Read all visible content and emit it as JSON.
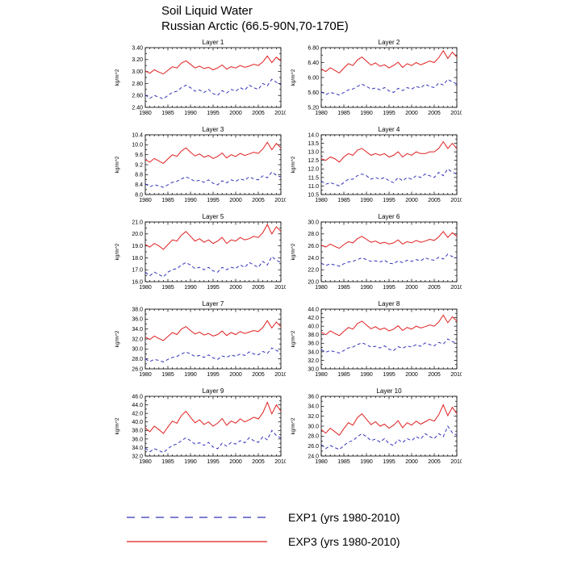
{
  "title": {
    "line1": "Soil Liquid Water",
    "line2": "Russian Arctic (66.5-90N,70-170E)"
  },
  "legend": [
    {
      "name": "EXP1",
      "label": "EXP1 (yrs 1980-2010)",
      "color": "#3333bb",
      "style": "dashed"
    },
    {
      "name": "EXP3",
      "label": "EXP3 (yrs 1980-2010)",
      "color": "#e02020",
      "style": "solid"
    }
  ],
  "chart_data": {
    "type": "line",
    "ylabel": "kg/m^2",
    "x": [
      1980,
      1981,
      1982,
      1983,
      1984,
      1985,
      1986,
      1987,
      1988,
      1989,
      1990,
      1991,
      1992,
      1993,
      1994,
      1995,
      1996,
      1997,
      1998,
      1999,
      2000,
      2001,
      2002,
      2003,
      2004,
      2005,
      2006,
      2007,
      2008,
      2009,
      2010
    ],
    "xticks": [
      1980,
      1985,
      1990,
      1995,
      2000,
      2005,
      2010
    ],
    "panels": [
      {
        "title": "Layer 1",
        "ylim": [
          2.4,
          3.4
        ],
        "yticks": [
          "2.40",
          "2.60",
          "2.80",
          "3.00",
          "3.20",
          "3.40"
        ],
        "EXP3": [
          3.01,
          2.97,
          3.03,
          2.99,
          2.96,
          3.02,
          3.08,
          3.06,
          3.14,
          3.18,
          3.12,
          3.06,
          3.09,
          3.05,
          3.07,
          3.03,
          3.06,
          3.11,
          3.04,
          3.08,
          3.06,
          3.1,
          3.07,
          3.09,
          3.12,
          3.1,
          3.16,
          3.26,
          3.15,
          3.24,
          3.18
        ],
        "EXP1": [
          2.61,
          2.55,
          2.6,
          2.57,
          2.54,
          2.6,
          2.65,
          2.67,
          2.73,
          2.77,
          2.73,
          2.67,
          2.69,
          2.65,
          2.7,
          2.63,
          2.6,
          2.68,
          2.64,
          2.7,
          2.67,
          2.73,
          2.69,
          2.77,
          2.73,
          2.7,
          2.8,
          2.76,
          2.87,
          2.82,
          2.78
        ]
      },
      {
        "title": "Layer 2",
        "ylim": [
          5.2,
          6.8
        ],
        "yticks": [
          "5.20",
          "5.60",
          "6.00",
          "6.40",
          "6.80"
        ],
        "EXP3": [
          6.23,
          6.16,
          6.26,
          6.19,
          6.12,
          6.25,
          6.37,
          6.32,
          6.47,
          6.55,
          6.44,
          6.33,
          6.39,
          6.3,
          6.34,
          6.26,
          6.32,
          6.41,
          6.27,
          6.37,
          6.32,
          6.4,
          6.34,
          6.39,
          6.44,
          6.4,
          6.53,
          6.72,
          6.51,
          6.68,
          6.55
        ],
        "EXP1": [
          5.62,
          5.54,
          5.6,
          5.57,
          5.53,
          5.6,
          5.67,
          5.69,
          5.76,
          5.82,
          5.76,
          5.69,
          5.72,
          5.67,
          5.73,
          5.64,
          5.6,
          5.71,
          5.65,
          5.73,
          5.69,
          5.76,
          5.72,
          5.82,
          5.76,
          5.73,
          5.85,
          5.8,
          5.95,
          5.88,
          5.83
        ]
      },
      {
        "title": "Layer 3",
        "ylim": [
          8.0,
          10.4
        ],
        "yticks": [
          "8.0",
          "8.4",
          "8.8",
          "9.2",
          "9.6",
          "10.0",
          "10.4"
        ],
        "EXP3": [
          9.4,
          9.3,
          9.45,
          9.35,
          9.25,
          9.43,
          9.6,
          9.53,
          9.75,
          9.87,
          9.7,
          9.55,
          9.63,
          9.5,
          9.57,
          9.45,
          9.53,
          9.67,
          9.47,
          9.6,
          9.53,
          9.65,
          9.57,
          9.63,
          9.7,
          9.65,
          9.83,
          10.1,
          9.8,
          10.05,
          9.87
        ],
        "EXP1": [
          8.43,
          8.31,
          8.39,
          8.35,
          8.29,
          8.39,
          8.49,
          8.53,
          8.63,
          8.71,
          8.63,
          8.53,
          8.57,
          8.49,
          8.59,
          8.45,
          8.39,
          8.55,
          8.47,
          8.59,
          8.53,
          8.63,
          8.57,
          8.71,
          8.63,
          8.59,
          8.75,
          8.67,
          8.9,
          8.78,
          8.7
        ]
      },
      {
        "title": "Layer 4",
        "ylim": [
          10.5,
          14.0
        ],
        "yticks": [
          "10.5",
          "11.0",
          "11.5",
          "12.0",
          "12.5",
          "13.0",
          "13.5",
          "14.0"
        ],
        "EXP3": [
          12.6,
          12.5,
          12.7,
          12.6,
          12.4,
          12.7,
          12.9,
          12.8,
          13.1,
          13.2,
          13.0,
          12.8,
          12.9,
          12.8,
          12.9,
          12.7,
          12.8,
          13.0,
          12.7,
          12.9,
          12.8,
          13.0,
          12.9,
          12.9,
          13.0,
          13.0,
          13.2,
          13.6,
          13.2,
          13.5,
          13.2
        ],
        "EXP1": [
          11.3,
          11.1,
          11.2,
          11.1,
          11.0,
          11.2,
          11.4,
          11.4,
          11.6,
          11.7,
          11.6,
          11.4,
          11.5,
          11.4,
          11.5,
          11.3,
          11.2,
          11.5,
          11.3,
          11.5,
          11.4,
          11.6,
          11.5,
          11.7,
          11.6,
          11.5,
          11.8,
          11.6,
          12.0,
          11.8,
          11.7
        ]
      },
      {
        "title": "Layer 5",
        "ylim": [
          16.0,
          21.0
        ],
        "yticks": [
          "16.0",
          "17.0",
          "18.0",
          "19.0",
          "20.0",
          "21.0"
        ],
        "EXP3": [
          19.1,
          18.9,
          19.2,
          19.0,
          18.7,
          19.1,
          19.5,
          19.4,
          19.9,
          20.2,
          19.8,
          19.4,
          19.6,
          19.3,
          19.5,
          19.2,
          19.4,
          19.7,
          19.2,
          19.5,
          19.4,
          19.7,
          19.5,
          19.6,
          19.8,
          19.7,
          20.1,
          20.8,
          20.0,
          20.6,
          20.2
        ],
        "EXP1": [
          16.8,
          16.5,
          16.8,
          16.6,
          16.4,
          16.8,
          17.0,
          17.1,
          17.4,
          17.6,
          17.4,
          17.1,
          17.2,
          17.0,
          17.2,
          16.9,
          16.8,
          17.2,
          17.0,
          17.2,
          17.1,
          17.4,
          17.2,
          17.6,
          17.4,
          17.2,
          17.7,
          17.4,
          18.1,
          17.8,
          17.6
        ]
      },
      {
        "title": "Layer 6",
        "ylim": [
          20.0,
          30.0
        ],
        "yticks": [
          "20.0",
          "22.0",
          "24.0",
          "26.0",
          "28.0",
          "30.0"
        ],
        "EXP3": [
          26.1,
          25.8,
          26.3,
          25.9,
          25.6,
          26.2,
          26.7,
          26.5,
          27.2,
          27.6,
          27.1,
          26.6,
          26.8,
          26.4,
          26.6,
          26.3,
          26.5,
          27.0,
          26.3,
          26.7,
          26.5,
          26.9,
          26.6,
          26.8,
          27.1,
          26.9,
          27.5,
          28.4,
          27.4,
          28.2,
          27.6
        ],
        "EXP1": [
          23.1,
          22.7,
          23.0,
          22.8,
          22.6,
          23.0,
          23.3,
          23.4,
          23.7,
          24.0,
          23.7,
          23.4,
          23.5,
          23.3,
          23.6,
          23.1,
          23.0,
          23.5,
          23.2,
          23.6,
          23.4,
          23.7,
          23.5,
          24.0,
          23.7,
          23.6,
          24.1,
          23.8,
          24.6,
          24.2,
          24.0
        ]
      },
      {
        "title": "Layer 7",
        "ylim": [
          26.0,
          38.0
        ],
        "yticks": [
          "26.0",
          "28.0",
          "30.0",
          "32.0",
          "34.0",
          "36.0",
          "38.0"
        ],
        "EXP3": [
          32.4,
          31.9,
          32.6,
          32.1,
          31.7,
          32.5,
          33.3,
          32.9,
          34.0,
          34.5,
          33.7,
          33.0,
          33.4,
          32.8,
          33.1,
          32.6,
          32.9,
          33.6,
          32.7,
          33.3,
          32.9,
          33.5,
          33.1,
          33.4,
          33.7,
          33.5,
          34.3,
          35.7,
          34.2,
          35.4,
          34.5
        ],
        "EXP1": [
          28.0,
          27.5,
          27.9,
          27.7,
          27.4,
          27.9,
          28.3,
          28.5,
          29.0,
          29.4,
          29.0,
          28.5,
          28.7,
          28.3,
          28.8,
          28.2,
          27.9,
          28.6,
          28.3,
          28.8,
          28.5,
          29.0,
          28.7,
          29.4,
          29.0,
          28.8,
          29.5,
          29.1,
          30.2,
          29.7,
          29.3
        ]
      },
      {
        "title": "Layer 8",
        "ylim": [
          30.0,
          44.0
        ],
        "yticks": [
          "30.0",
          "32.0",
          "34.0",
          "36.0",
          "38.0",
          "40.0",
          "42.0",
          "44.0"
        ],
        "EXP3": [
          38.6,
          38.0,
          38.9,
          38.3,
          37.8,
          38.8,
          39.7,
          39.3,
          40.6,
          41.2,
          40.3,
          39.4,
          39.9,
          39.2,
          39.6,
          38.9,
          39.3,
          40.1,
          39.0,
          39.7,
          39.3,
          40.0,
          39.6,
          39.9,
          40.3,
          40.0,
          41.0,
          42.6,
          40.8,
          42.2,
          41.2
        ],
        "EXP1": [
          34.5,
          33.9,
          34.3,
          34.0,
          33.7,
          34.3,
          34.9,
          35.1,
          35.7,
          36.1,
          35.7,
          35.1,
          35.3,
          34.9,
          35.4,
          34.6,
          34.3,
          35.2,
          34.8,
          35.4,
          35.1,
          35.7,
          35.3,
          36.1,
          35.7,
          35.4,
          36.2,
          35.8,
          37.0,
          36.4,
          36.0
        ]
      },
      {
        "title": "Layer 9",
        "ylim": [
          32.0,
          46.0
        ],
        "yticks": [
          "32.0",
          "34.0",
          "36.0",
          "38.0",
          "40.0",
          "42.0",
          "44.0",
          "46.0"
        ],
        "EXP3": [
          38.6,
          37.7,
          39.0,
          38.2,
          37.3,
          38.8,
          40.2,
          39.7,
          41.5,
          42.5,
          41.1,
          39.8,
          40.5,
          39.4,
          40.0,
          39.0,
          39.7,
          40.8,
          39.2,
          40.2,
          39.7,
          40.7,
          40.0,
          40.5,
          41.1,
          40.7,
          42.1,
          44.6,
          41.9,
          44.0,
          42.5
        ],
        "EXP1": [
          33.9,
          33.0,
          33.7,
          33.3,
          32.8,
          33.7,
          34.5,
          34.8,
          35.6,
          36.3,
          35.6,
          34.8,
          35.1,
          34.5,
          35.2,
          34.1,
          33.7,
          35.0,
          34.3,
          35.2,
          34.8,
          35.6,
          35.1,
          36.3,
          35.6,
          35.2,
          36.5,
          35.8,
          38.0,
          36.8,
          36.2
        ]
      },
      {
        "title": "Layer 10",
        "ylim": [
          24.0,
          36.0
        ],
        "yticks": [
          "24.0",
          "26.0",
          "28.0",
          "30.0",
          "32.0",
          "34.0",
          "36.0"
        ],
        "EXP3": [
          29.3,
          28.6,
          29.6,
          28.9,
          28.2,
          29.5,
          30.7,
          30.2,
          31.7,
          32.5,
          31.4,
          30.3,
          30.9,
          30.0,
          30.4,
          29.6,
          30.2,
          31.1,
          29.7,
          30.7,
          30.2,
          31.0,
          30.4,
          30.9,
          31.4,
          31.0,
          32.3,
          34.3,
          32.1,
          33.8,
          32.5
        ],
        "EXP1": [
          26.3,
          25.5,
          26.1,
          25.7,
          25.3,
          26.1,
          26.8,
          27.1,
          27.9,
          28.5,
          27.9,
          27.1,
          27.4,
          26.8,
          27.5,
          26.5,
          26.1,
          27.3,
          26.7,
          27.5,
          27.1,
          27.9,
          27.4,
          28.5,
          27.9,
          27.5,
          28.5,
          27.9,
          30.0,
          28.7,
          28.2
        ]
      }
    ]
  }
}
